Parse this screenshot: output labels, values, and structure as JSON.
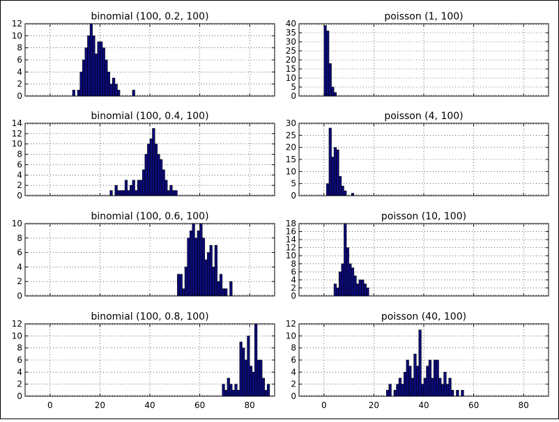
{
  "colors": {
    "bar_fill": "#0b0b7a",
    "bar_edge": "#000000",
    "grid": "#000000",
    "background": "#ffffff"
  },
  "chart_data": [
    {
      "type": "bar",
      "title": "binomial (100, 0.2, 100)",
      "xlim": [
        -10,
        90
      ],
      "ylim": [
        0,
        12
      ],
      "xticks": [],
      "yticks": [
        0,
        2,
        4,
        6,
        8,
        10,
        12
      ],
      "grid": true,
      "x": [
        9,
        11,
        12,
        13,
        14,
        15,
        16,
        17,
        18,
        19,
        20,
        21,
        22,
        23,
        24,
        25,
        26,
        27,
        33
      ],
      "values": [
        1,
        1,
        4,
        6,
        8,
        10,
        12,
        10,
        7,
        9,
        9,
        8,
        6,
        4,
        2,
        3,
        2,
        1,
        1
      ]
    },
    {
      "type": "bar",
      "title": "poisson (1, 100)",
      "xlim": [
        -10,
        90
      ],
      "ylim": [
        0,
        40
      ],
      "xticks": [],
      "yticks": [
        0,
        5,
        10,
        15,
        20,
        25,
        30,
        35,
        40
      ],
      "grid": true,
      "x": [
        0,
        1,
        2,
        3,
        4
      ],
      "values": [
        39,
        36,
        18,
        5,
        2
      ]
    },
    {
      "type": "bar",
      "title": "binomial (100, 0.4, 100)",
      "xlim": [
        -10,
        90
      ],
      "ylim": [
        0,
        14
      ],
      "xticks": [],
      "yticks": [
        0,
        2,
        4,
        6,
        8,
        10,
        12,
        14
      ],
      "grid": true,
      "x": [
        24,
        26,
        27,
        28,
        29,
        30,
        31,
        32,
        33,
        34,
        35,
        36,
        37,
        38,
        39,
        40,
        41,
        42,
        43,
        44,
        45,
        46,
        47,
        48,
        49,
        50
      ],
      "values": [
        1,
        2,
        1,
        1,
        1,
        3,
        1,
        2,
        3,
        1,
        3,
        3,
        5,
        8,
        10,
        11,
        13,
        10,
        8,
        7,
        5,
        3,
        1,
        2,
        1,
        1
      ]
    },
    {
      "type": "bar",
      "title": "poisson (4, 100)",
      "xlim": [
        -10,
        90
      ],
      "ylim": [
        0,
        30
      ],
      "xticks": [],
      "yticks": [
        0,
        5,
        10,
        15,
        20,
        25,
        30
      ],
      "grid": true,
      "x": [
        1,
        2,
        3,
        4,
        5,
        6,
        7,
        8,
        11
      ],
      "values": [
        5,
        28,
        16,
        20,
        19,
        8,
        4,
        2,
        1
      ]
    },
    {
      "type": "bar",
      "title": "binomial (100, 0.6, 100)",
      "xlim": [
        -10,
        90
      ],
      "ylim": [
        0,
        10
      ],
      "xticks": [],
      "yticks": [
        0,
        2,
        4,
        6,
        8,
        10
      ],
      "grid": true,
      "x": [
        51,
        52,
        53,
        54,
        55,
        56,
        57,
        58,
        59,
        60,
        61,
        62,
        63,
        64,
        65,
        66,
        67,
        68,
        69,
        70,
        72
      ],
      "values": [
        3,
        3,
        1,
        4,
        8,
        9,
        10,
        8,
        9,
        10,
        8,
        5,
        6,
        7,
        4,
        7,
        2,
        3,
        1,
        1,
        2
      ]
    },
    {
      "type": "bar",
      "title": "poisson (10, 100)",
      "xlim": [
        -10,
        90
      ],
      "ylim": [
        0,
        18
      ],
      "xticks": [],
      "yticks": [
        0,
        2,
        4,
        6,
        8,
        10,
        12,
        14,
        16,
        18
      ],
      "grid": true,
      "x": [
        4,
        5,
        6,
        7,
        8,
        9,
        10,
        11,
        12,
        13,
        14,
        15,
        16,
        17
      ],
      "values": [
        3,
        2,
        6,
        8,
        18,
        12,
        8,
        7,
        5,
        3,
        4,
        4,
        3,
        2
      ]
    },
    {
      "type": "bar",
      "title": "binomial (100, 0.8, 100)",
      "xlim": [
        -10,
        90
      ],
      "ylim": [
        0,
        12
      ],
      "xticks": [
        0,
        20,
        40,
        60,
        80
      ],
      "yticks": [
        0,
        2,
        4,
        6,
        8,
        10,
        12
      ],
      "grid": true,
      "x": [
        69,
        70,
        71,
        72,
        73,
        74,
        75,
        76,
        77,
        78,
        79,
        80,
        81,
        82,
        83,
        84,
        85,
        86,
        87
      ],
      "values": [
        2,
        1,
        3,
        2,
        1,
        2,
        1,
        9,
        8,
        6,
        10,
        5,
        4,
        12,
        6,
        6,
        3,
        1,
        2
      ]
    },
    {
      "type": "bar",
      "title": "poisson (40, 100)",
      "xlim": [
        -10,
        90
      ],
      "ylim": [
        0,
        12
      ],
      "xticks": [
        0,
        20,
        40,
        60,
        80
      ],
      "yticks": [
        0,
        2,
        4,
        6,
        8,
        10,
        12
      ],
      "grid": true,
      "x": [
        25,
        26,
        28,
        29,
        30,
        31,
        32,
        33,
        34,
        35,
        36,
        37,
        38,
        39,
        40,
        41,
        42,
        43,
        44,
        45,
        46,
        47,
        48,
        49,
        50,
        51,
        53,
        55
      ],
      "values": [
        1,
        2,
        1,
        2,
        3,
        2,
        4,
        6,
        5,
        3,
        7,
        5,
        11,
        2,
        3,
        5,
        6,
        3,
        6,
        6,
        3,
        2,
        4,
        2,
        3,
        1,
        1,
        1
      ]
    }
  ]
}
